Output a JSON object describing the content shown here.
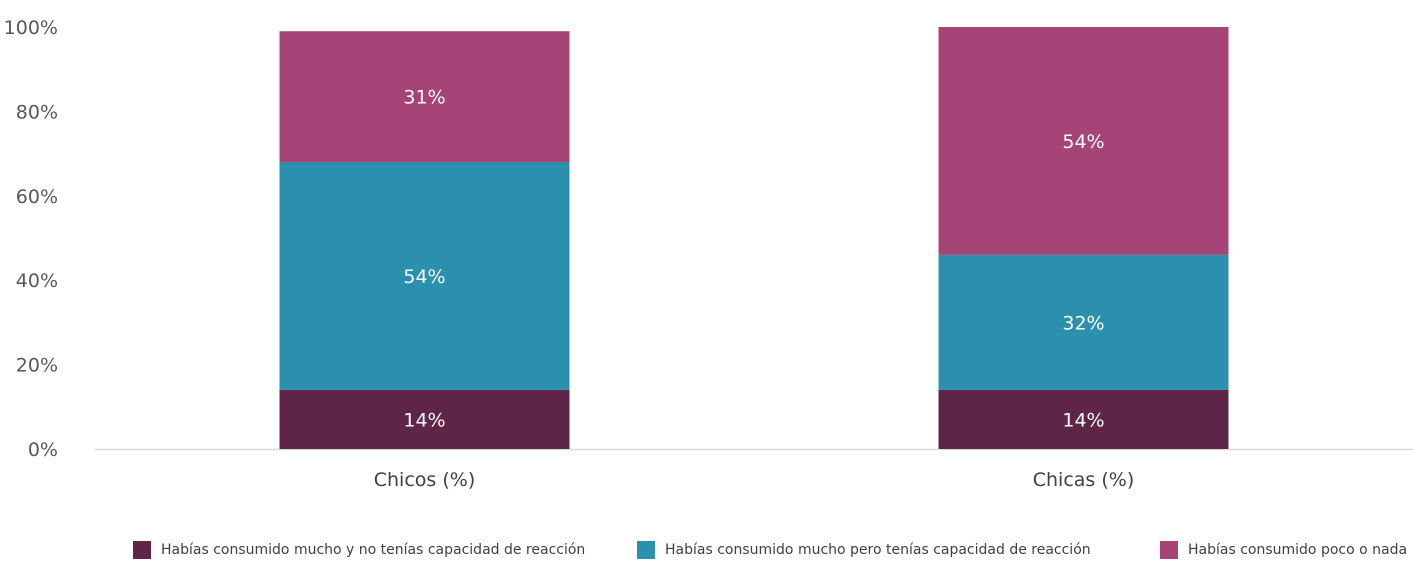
{
  "chart_data": {
    "type": "bar",
    "stacked": true,
    "title": "",
    "xlabel": "",
    "ylabel": "",
    "ylim": [
      0,
      100
    ],
    "yticks": [
      "0%",
      "20%",
      "40%",
      "60%",
      "80%",
      "100%"
    ],
    "categories": [
      "Chicos (%)",
      "Chicas (%)"
    ],
    "series": [
      {
        "name": "Habías consumido mucho y no tenías capacidad de reacción",
        "values": [
          14,
          14
        ],
        "color": "#5e2547",
        "labels": [
          "14%",
          "14%"
        ]
      },
      {
        "name": "Habías consumido mucho pero tenías capacidad de reacción",
        "values": [
          54,
          32
        ],
        "color": "#2b90ad",
        "labels": [
          "54%",
          "32%"
        ]
      },
      {
        "name": "Habías consumido poco o nada",
        "values": [
          31,
          54
        ],
        "color": "#a64377",
        "labels": [
          "31%",
          "54%"
        ]
      }
    ],
    "grid": false,
    "legend": "bottom"
  }
}
